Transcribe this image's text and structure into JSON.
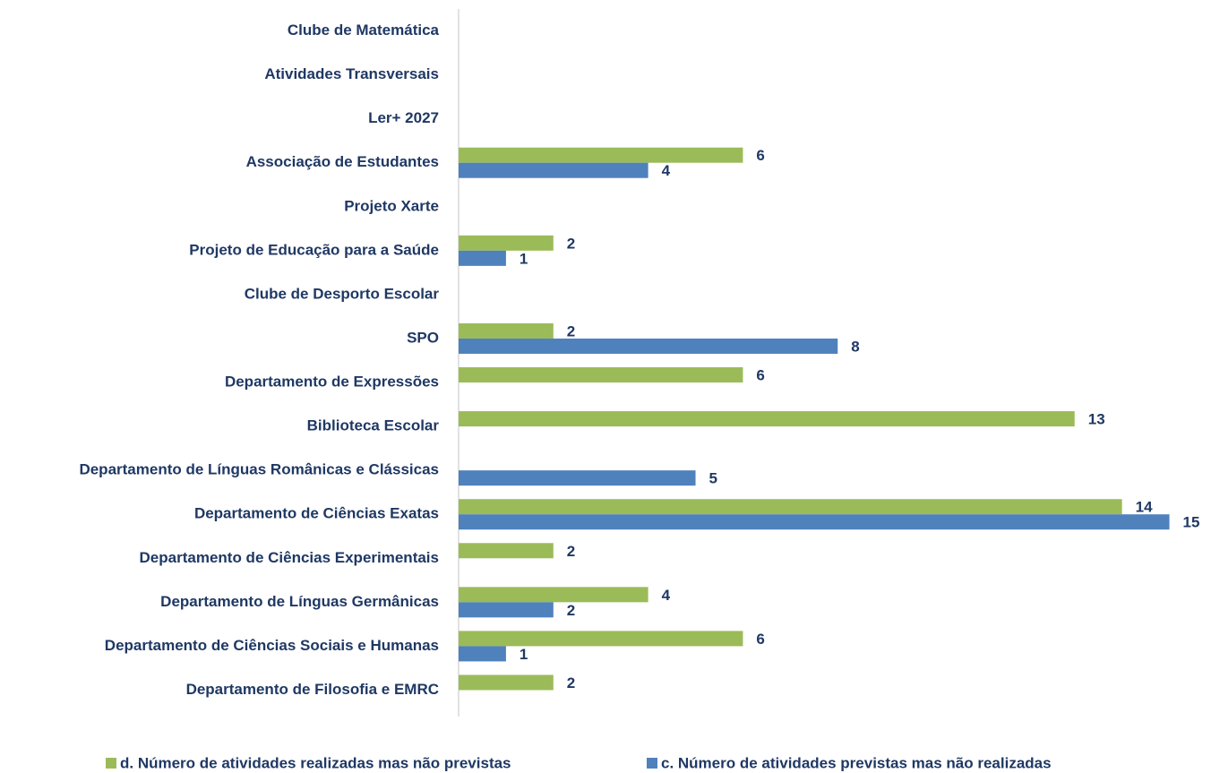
{
  "chart_data": {
    "type": "bar",
    "orientation": "horizontal",
    "categories": [
      "Clube de Matemática",
      "Atividades Transversais",
      "Ler+ 2027",
      "Associação de Estudantes",
      "Projeto Xarte",
      "Projeto de Educação para a Saúde",
      "Clube de Desporto Escolar",
      "SPO",
      "Departamento de Expressões",
      "Biblioteca Escolar",
      "Departamento de Línguas Românicas e Clássicas",
      "Departamento de Ciências Exatas",
      "Departamento de Ciências Experimentais",
      "Departamento de Línguas Germânicas",
      "Departamento de Ciências Sociais e Humanas",
      "Departamento de Filosofia e EMRC"
    ],
    "series": [
      {
        "name": "d. Número de atividades realizadas mas não previstas",
        "color": "#9bbb59",
        "values": [
          null,
          null,
          null,
          6,
          null,
          2,
          null,
          2,
          6,
          13,
          null,
          14,
          2,
          4,
          6,
          2
        ]
      },
      {
        "name": "c. Número de atividades previstas mas não realizadas",
        "color": "#4f81bd",
        "values": [
          null,
          null,
          null,
          4,
          null,
          1,
          null,
          8,
          null,
          null,
          5,
          15,
          null,
          2,
          1,
          null
        ]
      }
    ],
    "xlim": [
      0,
      15.5
    ],
    "legend": "bottom"
  }
}
